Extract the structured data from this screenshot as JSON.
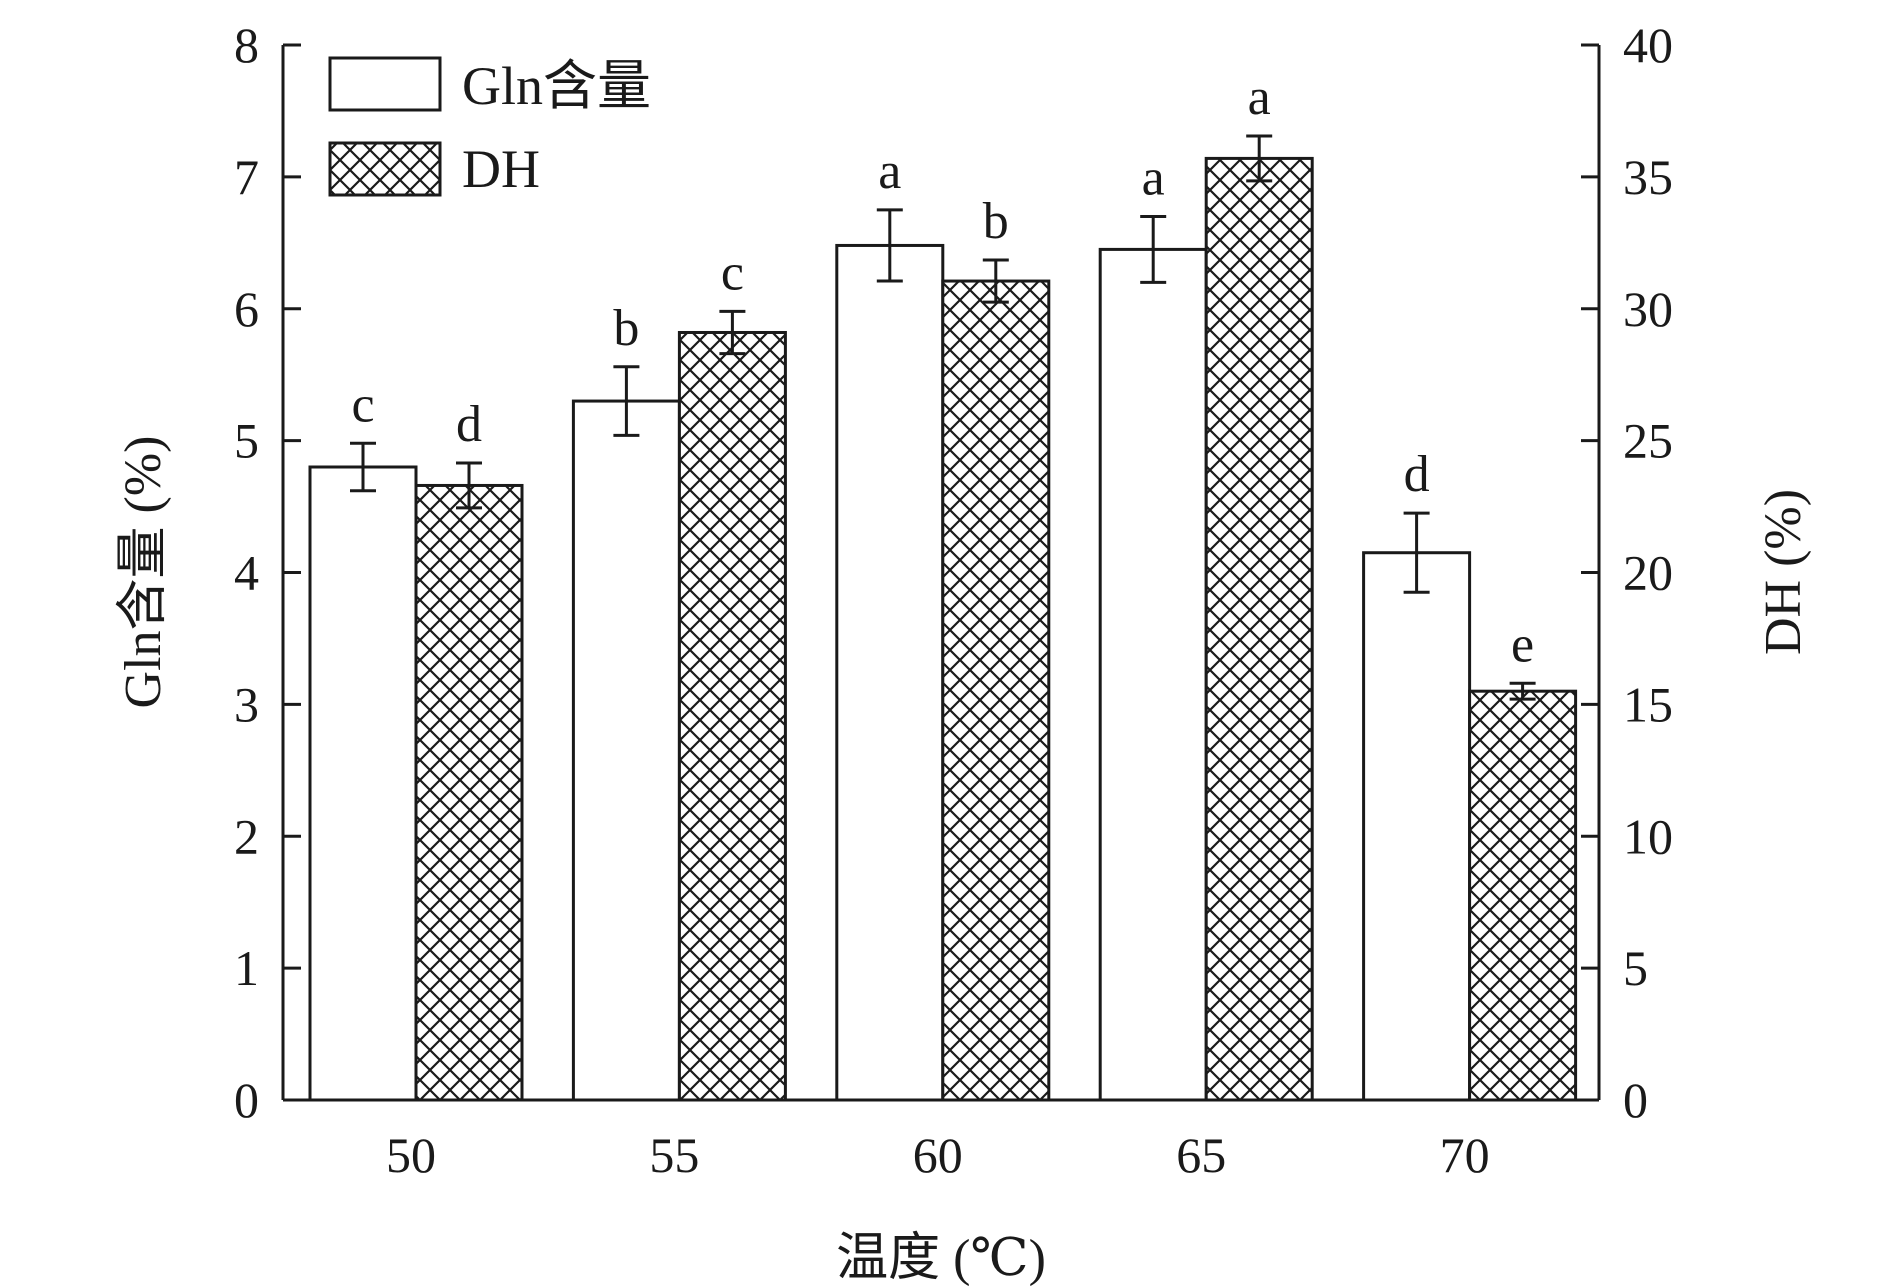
{
  "chart_data": {
    "type": "bar",
    "xlabel": "温度 (℃)",
    "ylabel_left": "Gln含量 (%)",
    "ylabel_right": "DH (%)",
    "categories": [
      "50",
      "55",
      "60",
      "65",
      "70"
    ],
    "ylim_left": [
      0,
      8
    ],
    "ylim_right": [
      0,
      40
    ],
    "yticks_left": [
      "0",
      "1",
      "2",
      "3",
      "4",
      "5",
      "6",
      "7",
      "8"
    ],
    "yticks_right": [
      "0",
      "5",
      "10",
      "15",
      "20",
      "25",
      "30",
      "35",
      "40"
    ],
    "grid": false,
    "legend": "top-left",
    "series": [
      {
        "name": "Gln含量",
        "axis": "left",
        "pattern": "none",
        "values": [
          4.8,
          5.3,
          6.48,
          6.45,
          4.15
        ],
        "errors": [
          0.18,
          0.26,
          0.27,
          0.25,
          0.3
        ],
        "labels": [
          "c",
          "b",
          "a",
          "a",
          "d"
        ]
      },
      {
        "name": "DH",
        "axis": "right",
        "pattern": "crosshatch",
        "values": [
          23.3,
          29.1,
          31.05,
          35.7,
          15.5
        ],
        "errors": [
          0.85,
          0.8,
          0.8,
          0.85,
          0.3
        ],
        "labels": [
          "d",
          "c",
          "b",
          "a",
          "e"
        ]
      }
    ]
  },
  "colors": {
    "ink": "#1a1a1a",
    "background": "#ffffff"
  }
}
